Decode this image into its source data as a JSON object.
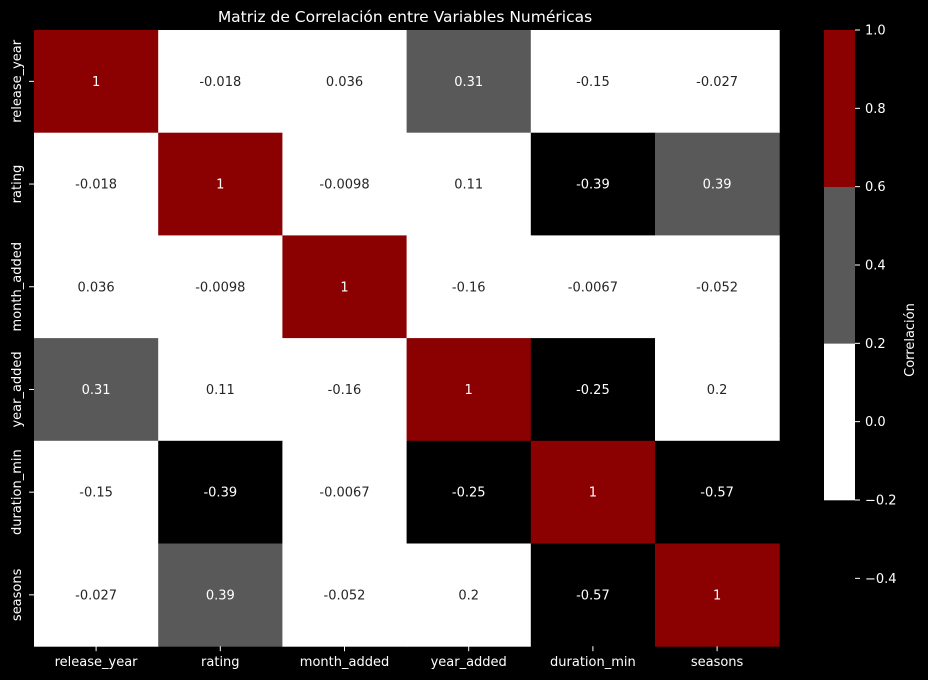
{
  "chart_data": {
    "type": "heatmap",
    "title": "Matriz de Correlación entre Variables Numéricas",
    "x_categories": [
      "release_year",
      "rating",
      "month_added",
      "year_added",
      "duration_min",
      "seasons"
    ],
    "y_categories": [
      "release_year",
      "rating",
      "month_added",
      "year_added",
      "duration_min",
      "seasons"
    ],
    "values": [
      [
        1,
        -0.018,
        0.036,
        0.31,
        -0.15,
        -0.027
      ],
      [
        -0.018,
        1,
        -0.0098,
        0.11,
        -0.39,
        0.39
      ],
      [
        0.036,
        -0.0098,
        1,
        -0.16,
        -0.0067,
        -0.052
      ],
      [
        0.31,
        0.11,
        -0.16,
        1,
        -0.25,
        0.2
      ],
      [
        -0.15,
        -0.39,
        -0.0067,
        -0.25,
        1,
        -0.57
      ],
      [
        -0.027,
        0.39,
        -0.052,
        0.2,
        -0.57,
        1
      ]
    ],
    "annotations": [
      [
        "1",
        "-0.018",
        "0.036",
        "0.31",
        "-0.15",
        "-0.027"
      ],
      [
        "-0.018",
        "1",
        "-0.0098",
        "0.11",
        "-0.39",
        "0.39"
      ],
      [
        "0.036",
        "-0.0098",
        "1",
        "-0.16",
        "-0.0067",
        "-0.052"
      ],
      [
        "0.31",
        "0.11",
        "-0.16",
        "1",
        "-0.25",
        "0.2"
      ],
      [
        "-0.15",
        "-0.39",
        "-0.0067",
        "-0.25",
        "1",
        "-0.57"
      ],
      [
        "-0.027",
        "0.39",
        "-0.052",
        "0.2",
        "-0.57",
        "1"
      ]
    ],
    "colorbar": {
      "label": "Correlación",
      "range": [
        -0.57,
        1
      ],
      "ticks": [
        -0.4,
        -0.2,
        0.0,
        0.2,
        0.4,
        0.6,
        0.8,
        1.0
      ],
      "tick_labels": [
        "−0.4",
        "−0.2",
        "0.0",
        "0.2",
        "0.4",
        "0.6",
        "0.8",
        "1.0"
      ],
      "bands": [
        {
          "from": -0.57,
          "to": -0.2,
          "color": "#000000"
        },
        {
          "from": -0.2,
          "to": 0.2,
          "color": "#ffffff"
        },
        {
          "from": 0.2,
          "to": 0.6,
          "color": "#595959"
        },
        {
          "from": 0.6,
          "to": 1.0,
          "color": "#8b0000"
        }
      ]
    },
    "background": "#000000",
    "text_on_light": "#262626",
    "text_on_dark": "#ffffff"
  }
}
